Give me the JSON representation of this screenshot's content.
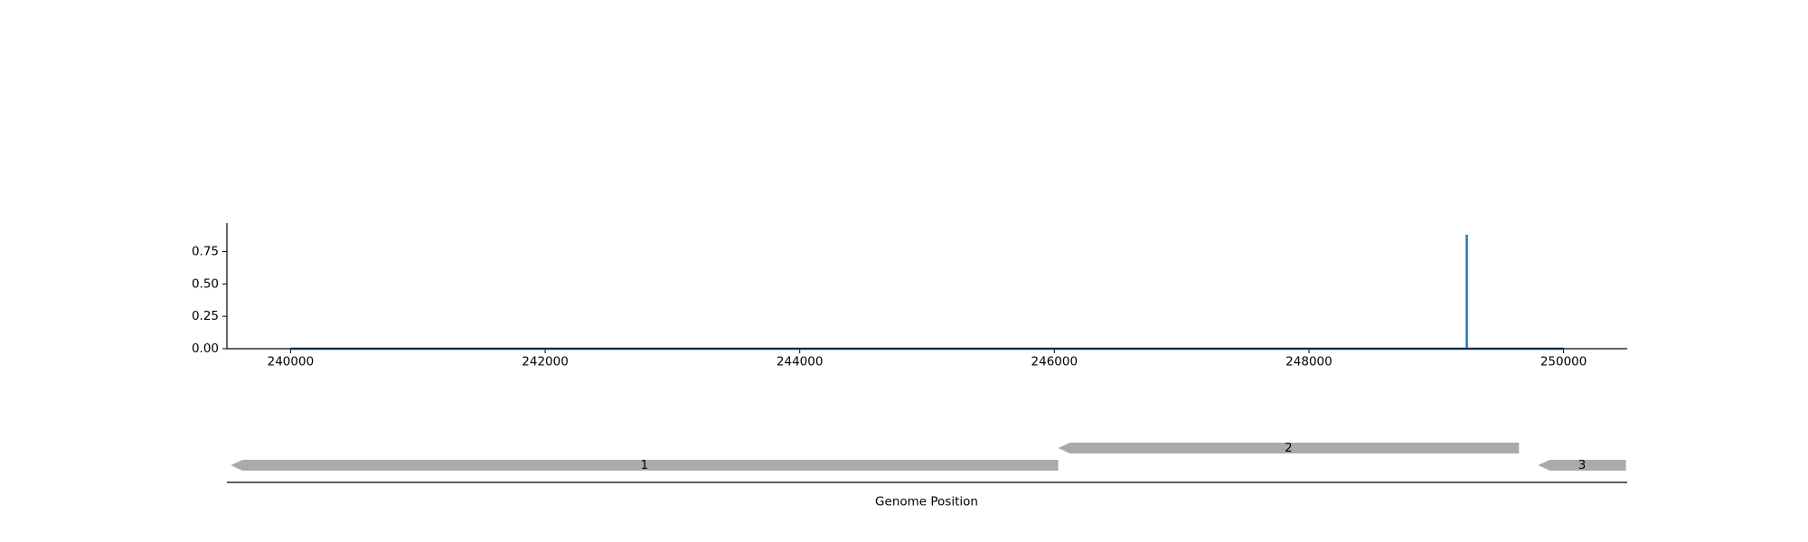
{
  "chart_data": [
    {
      "type": "line",
      "title": "",
      "xlabel": "",
      "ylabel": "",
      "xlim": [
        239500,
        250500
      ],
      "ylim": [
        0,
        0.97
      ],
      "xticks": [
        240000,
        242000,
        244000,
        246000,
        248000,
        250000
      ],
      "xtick_labels": [
        "240000",
        "242000",
        "244000",
        "246000",
        "248000",
        "250000"
      ],
      "yticks": [
        0.0,
        0.25,
        0.5,
        0.75
      ],
      "ytick_labels": [
        "0.00",
        "0.25",
        "0.50",
        "0.75"
      ],
      "grid": false,
      "color": "#1f77b4",
      "series": [
        {
          "x": [
            240000,
            249240,
            249240,
            249240,
            249240,
            250000
          ],
          "y": [
            0,
            0,
            0.88,
            0.88,
            0,
            0
          ]
        }
      ]
    },
    {
      "type": "gene_track",
      "xlabel": "Genome Position",
      "xlim": [
        239500,
        250500
      ],
      "color": "#aaaaaa",
      "genes": [
        {
          "label": "1",
          "start": 239530,
          "end": 246030,
          "strand": "-",
          "row": 0
        },
        {
          "label": "2",
          "start": 246030,
          "end": 249650,
          "strand": "-",
          "row": 1
        },
        {
          "label": "3",
          "start": 249800,
          "end": 250490,
          "strand": "-",
          "row": 0
        }
      ]
    }
  ]
}
